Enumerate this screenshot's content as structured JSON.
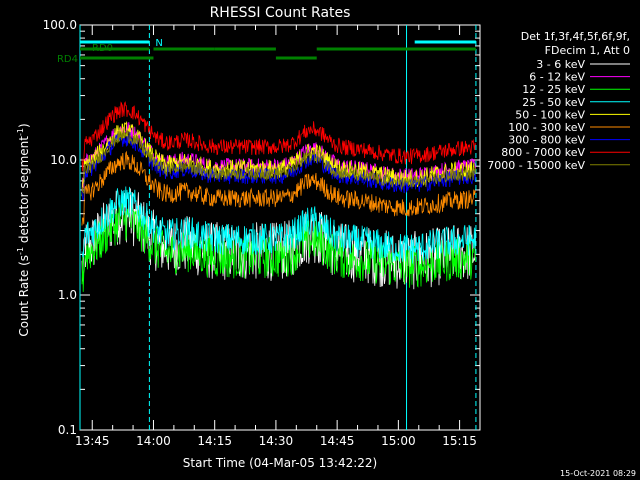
{
  "chart_data": {
    "type": "line",
    "title": "RHESSI Count Rates",
    "xlabel": "Start Time (04-Mar-05 13:42:22)",
    "ylabel_pre": "Count Rate (s",
    "ylabel_sup": "-1",
    "ylabel_mid": " detector segment",
    "ylabel_sup2": "-1",
    "ylabel_post": ")",
    "yscale": "log",
    "ylim": [
      0.1,
      100
    ],
    "xlim_minutes": [
      -18,
      80
    ],
    "x_ticks": [
      {
        "m": -15,
        "label": "13:45"
      },
      {
        "m": 0,
        "label": "14:00"
      },
      {
        "m": 15,
        "label": "14:15"
      },
      {
        "m": 30,
        "label": "14:30"
      },
      {
        "m": 45,
        "label": "14:45"
      },
      {
        "m": 60,
        "label": "15:00"
      },
      {
        "m": 75,
        "label": "15:15"
      }
    ],
    "y_ticks": [
      {
        "v": 0.1,
        "label": "0.1"
      },
      {
        "v": 1,
        "label": "1.0"
      },
      {
        "v": 10,
        "label": "10.0"
      },
      {
        "v": 100,
        "label": "100.0"
      }
    ],
    "legend_header": [
      "Det 1f,3f,4f,5f,6f,9f,",
      "FDecim 1, Att 0"
    ],
    "series": [
      {
        "name": "3 - 6 keV",
        "color": "#ffffff",
        "base": 2.1,
        "noise": 0.22
      },
      {
        "name": "6 - 12 keV",
        "color": "#ff00ff",
        "base": 9.0,
        "noise": 0.06
      },
      {
        "name": "12 - 25 keV",
        "color": "#00ff00",
        "base": 1.9,
        "noise": 0.16
      },
      {
        "name": "25 - 50 keV",
        "color": "#00ffff",
        "base": 2.6,
        "noise": 0.12
      },
      {
        "name": "50 - 100 keV",
        "color": "#ffff00",
        "base": 8.6,
        "noise": 0.07
      },
      {
        "name": "100 - 300 keV",
        "color": "#ff8c00",
        "base": 5.2,
        "noise": 0.07
      },
      {
        "name": "300 - 800 keV",
        "color": "#0000ff",
        "base": 7.6,
        "noise": 0.06
      },
      {
        "name": "800 - 7000 keV",
        "color": "#ff0000",
        "base": 12.5,
        "noise": 0.06
      },
      {
        "name": "7000 - 15000 keV",
        "color": "#808000",
        "base": 8.0,
        "noise": 0.05
      }
    ],
    "bars": [
      {
        "label": "N",
        "color": "#00ffff",
        "segments": [
          [
            -18,
            -1
          ],
          [
            64,
            79
          ]
        ]
      },
      {
        "label": "RD0",
        "color": "#008000",
        "segments": [
          [
            -18,
            -1
          ]
        ]
      },
      {
        "label": "",
        "color": "#008000",
        "segments": [
          [
            0,
            15
          ],
          [
            15,
            30
          ],
          [
            40,
            79
          ]
        ]
      },
      {
        "label": "RD4",
        "color": "#008000",
        "segments": [
          [
            -18,
            0
          ],
          [
            30,
            40
          ]
        ]
      }
    ],
    "vlines": [
      {
        "m": -18,
        "color": "#00ffff",
        "style": "solid"
      },
      {
        "m": -1,
        "color": "#00ffff",
        "style": "dashed"
      },
      {
        "m": 62,
        "color": "#00ffff",
        "style": "solid"
      },
      {
        "m": 79,
        "color": "#00ffff",
        "style": "dashed"
      }
    ]
  },
  "footer": {
    "timestamp": "15-Oct-2021 08:29"
  }
}
